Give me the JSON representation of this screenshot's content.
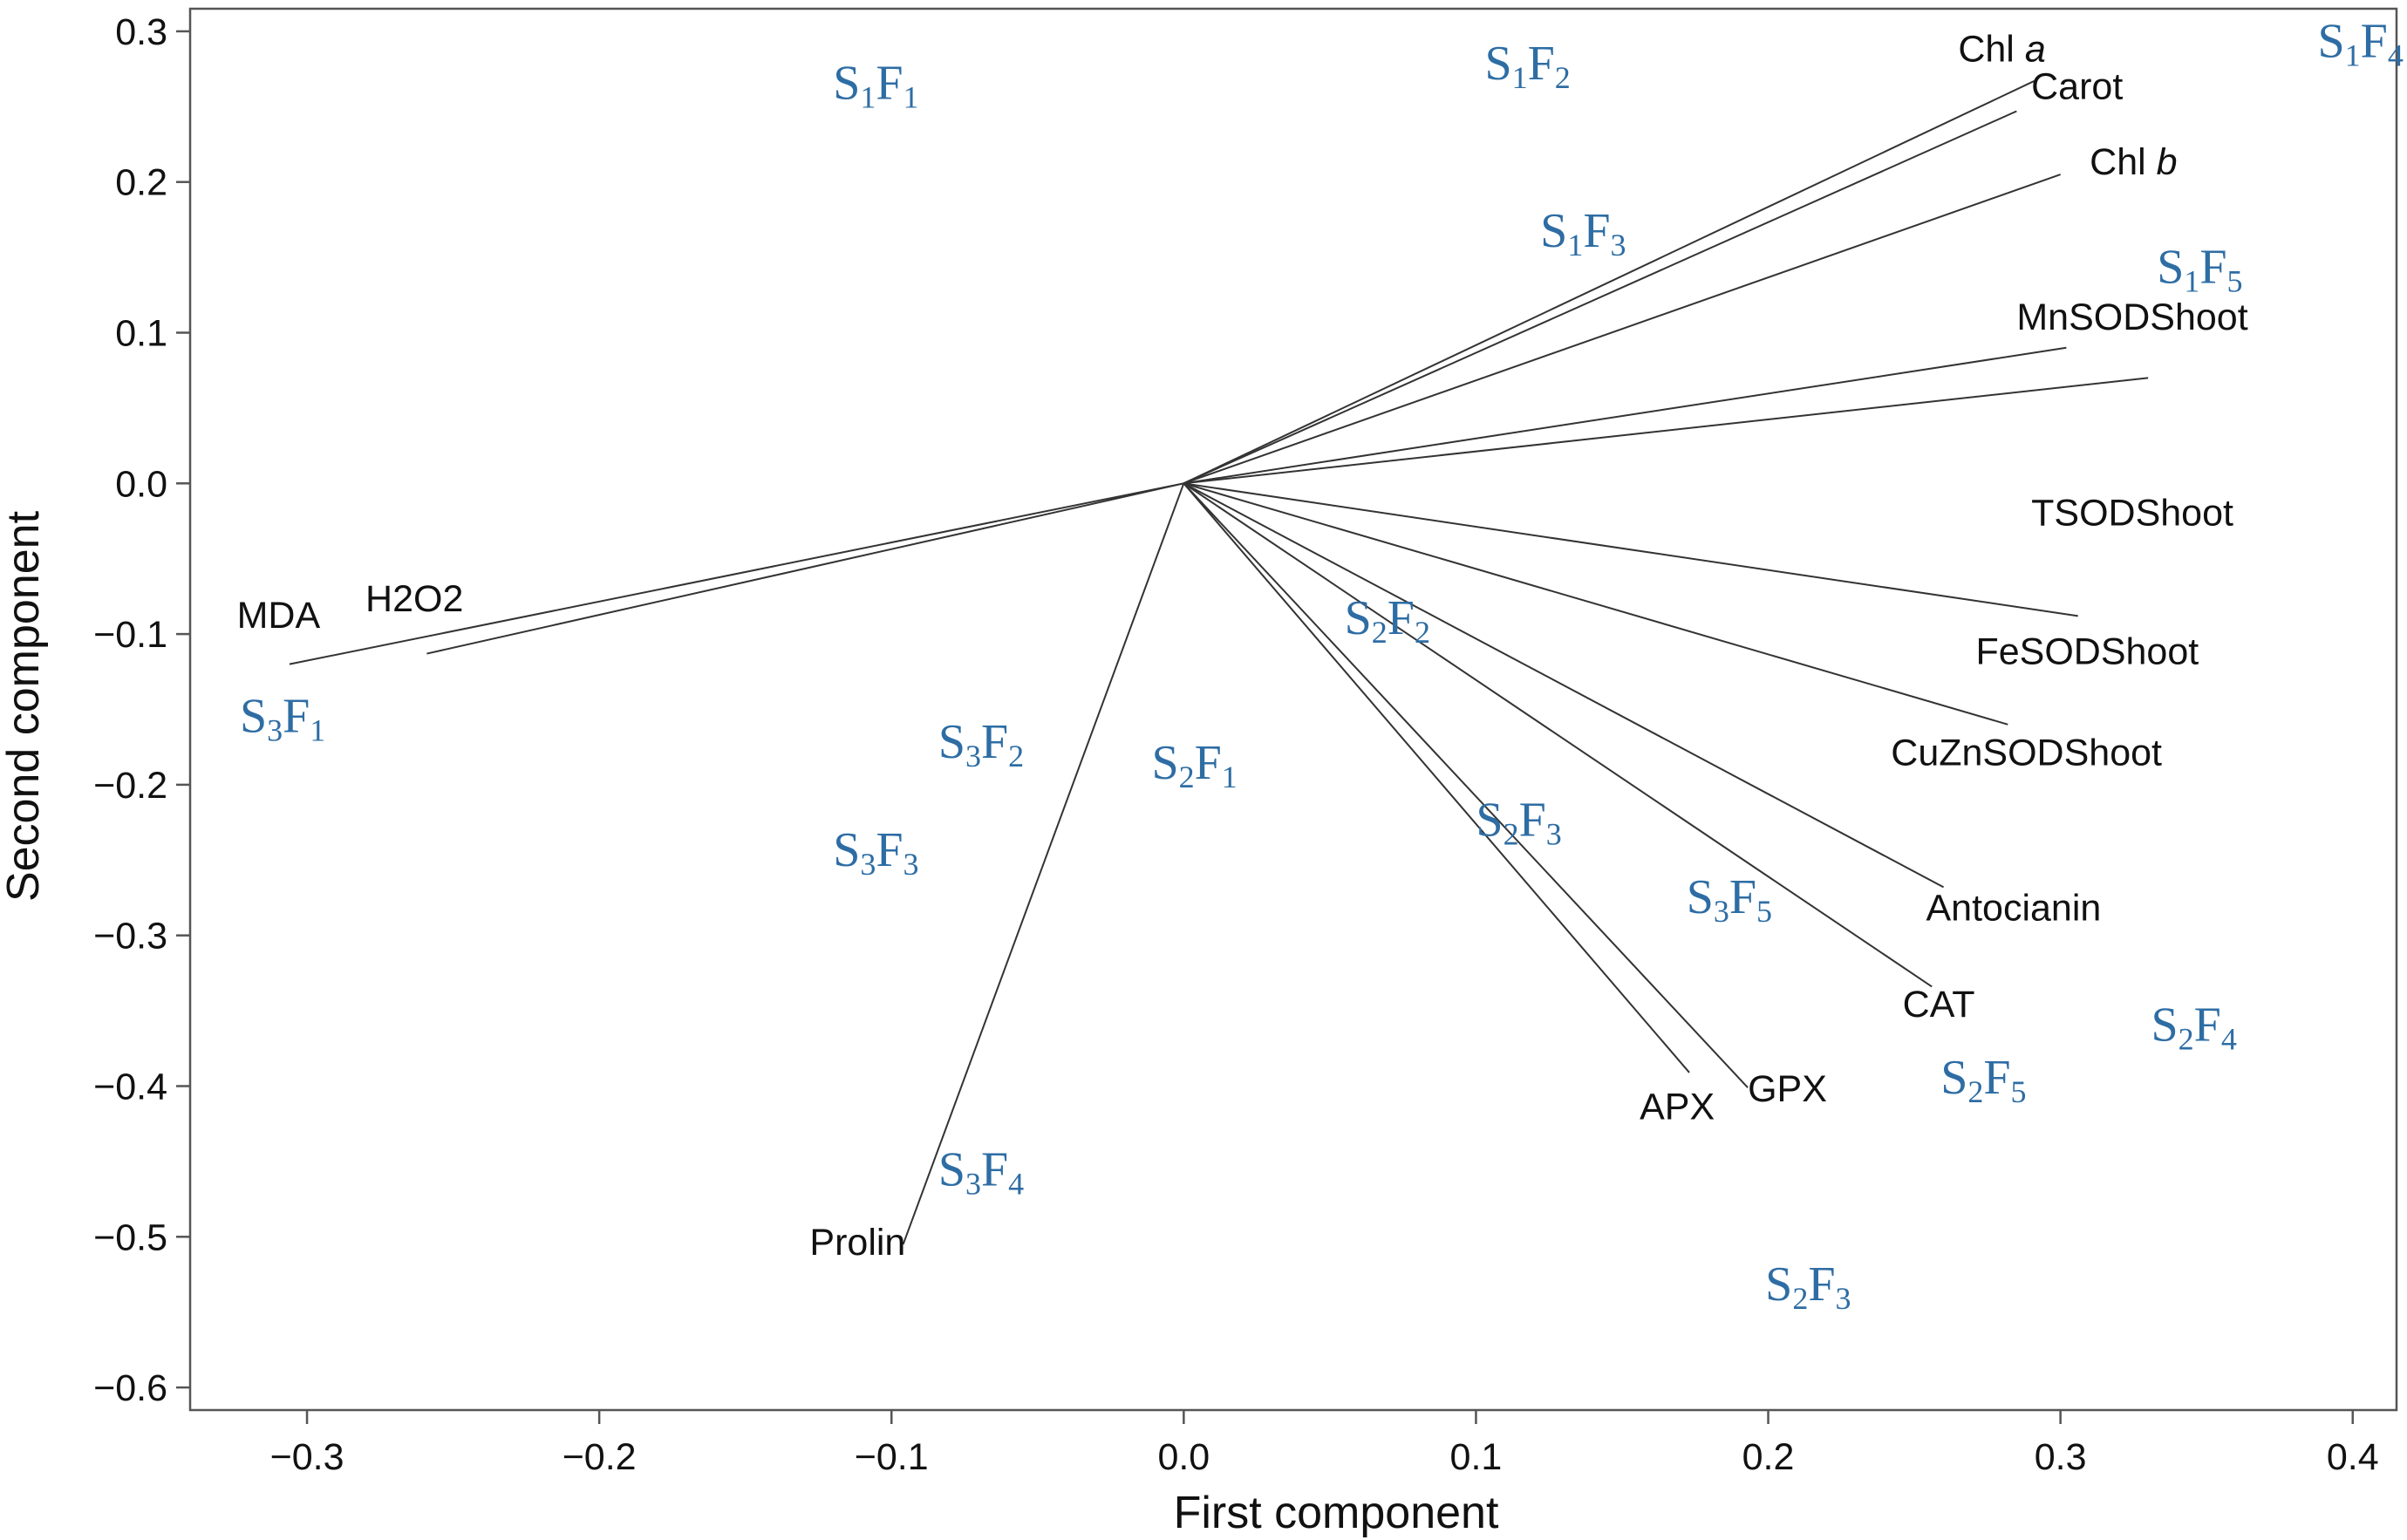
{
  "chart_data": {
    "type": "scatter",
    "title": "",
    "xlabel": "First component",
    "ylabel": "Second component",
    "xlim": [
      -0.34,
      0.415
    ],
    "ylim": [
      -0.615,
      0.315
    ],
    "grid": false,
    "x_ticks": [
      -0.3,
      -0.2,
      -0.1,
      0.0,
      0.1,
      0.2,
      0.3,
      0.4
    ],
    "x_tick_labels": [
      "−0.3",
      "−0.2",
      "−0.1",
      "0.0",
      "0.1",
      "0.2",
      "0.3",
      "0.4"
    ],
    "y_ticks": [
      0.3,
      0.2,
      0.1,
      0.0,
      -0.1,
      -0.2,
      -0.3,
      -0.4,
      -0.5,
      -0.6
    ],
    "y_tick_labels": [
      "0.3",
      "0.2",
      "0.1",
      "0.0",
      "−0.1",
      "−0.2",
      "−0.3",
      "−0.4",
      "−0.5",
      "−0.6"
    ],
    "label_color": "#2e6da4",
    "loadings": [
      {
        "name": "Chl a",
        "text": "Chl ",
        "italic": "a",
        "x": 0.291,
        "y": 0.267,
        "label_x": 0.265,
        "label_y": 0.28
      },
      {
        "name": "Carot",
        "text": "Carot",
        "x": 0.285,
        "y": 0.247,
        "label_x": 0.29,
        "label_y": 0.255
      },
      {
        "name": "Chl b",
        "text": "Chl ",
        "italic": "b",
        "x": 0.3,
        "y": 0.205,
        "label_x": 0.31,
        "label_y": 0.205
      },
      {
        "name": "MnSODShoot",
        "text": "MnSODShoot",
        "x": 0.302,
        "y": 0.09,
        "label_x": 0.285,
        "label_y": 0.102
      },
      {
        "name": "TSODShoot",
        "text": "TSODShoot",
        "x": 0.33,
        "y": 0.07,
        "label_x": 0.29,
        "label_y": -0.028
      },
      {
        "name": "FeSODShoot",
        "text": "FeSODShoot",
        "x": 0.306,
        "y": -0.088,
        "label_x": 0.271,
        "label_y": -0.12
      },
      {
        "name": "CuZnSODShoot",
        "text": "CuZnSODShoot",
        "x": 0.282,
        "y": -0.16,
        "label_x": 0.242,
        "label_y": -0.187
      },
      {
        "name": "Antocianin",
        "text": "Antocianin",
        "x": 0.26,
        "y": -0.268,
        "label_x": 0.254,
        "label_y": -0.29
      },
      {
        "name": "CAT",
        "text": "CAT",
        "x": 0.256,
        "y": -0.334,
        "label_x": 0.246,
        "label_y": -0.354
      },
      {
        "name": "GPX",
        "text": "GPX",
        "x": 0.193,
        "y": -0.401,
        "label_x": 0.193,
        "label_y": -0.41
      },
      {
        "name": "APX",
        "text": "APX",
        "x": 0.173,
        "y": -0.391,
        "label_x": 0.156,
        "label_y": -0.422
      },
      {
        "name": "Prolin",
        "text": "Prolin",
        "x": -0.096,
        "y": -0.505,
        "label_x": -0.128,
        "label_y": -0.512
      },
      {
        "name": "MDA",
        "text": "MDA",
        "x": -0.306,
        "y": -0.12,
        "label_x": -0.324,
        "label_y": -0.096
      },
      {
        "name": "H2O2",
        "text": "H2O2",
        "x": -0.259,
        "y": -0.113,
        "label_x": -0.28,
        "label_y": -0.085
      }
    ],
    "observations": [
      {
        "name": "S1F1",
        "s": "1",
        "f": "1",
        "x": -0.12,
        "y": 0.255
      },
      {
        "name": "S1F2",
        "s": "1",
        "f": "2",
        "x": 0.103,
        "y": 0.268
      },
      {
        "name": "S1F3",
        "s": "1",
        "f": "3",
        "x": 0.122,
        "y": 0.157
      },
      {
        "name": "S1F4",
        "s": "1",
        "f": "4",
        "x": 0.388,
        "y": 0.283
      },
      {
        "name": "S1F5",
        "s": "1",
        "f": "5",
        "x": 0.333,
        "y": 0.133
      },
      {
        "name": "S2F1",
        "s": "2",
        "f": "1",
        "x": -0.011,
        "y": -0.196
      },
      {
        "name": "S2F2",
        "s": "2",
        "f": "2",
        "x": 0.055,
        "y": -0.1
      },
      {
        "name": "S2F3",
        "s": "2",
        "f": "3",
        "x": 0.1,
        "y": -0.234
      },
      {
        "name": "S2F3",
        "s": "2",
        "f": "3",
        "x": 0.199,
        "y": -0.542
      },
      {
        "name": "S2F4",
        "s": "2",
        "f": "4",
        "x": 0.331,
        "y": -0.37
      },
      {
        "name": "S2F5",
        "s": "2",
        "f": "5",
        "x": 0.259,
        "y": -0.405
      },
      {
        "name": "S3F1",
        "s": "3",
        "f": "1",
        "x": -0.323,
        "y": -0.165
      },
      {
        "name": "S3F2",
        "s": "3",
        "f": "2",
        "x": -0.084,
        "y": -0.182
      },
      {
        "name": "S3F3",
        "s": "3",
        "f": "3",
        "x": -0.12,
        "y": -0.254
      },
      {
        "name": "S3F4",
        "s": "3",
        "f": "4",
        "x": -0.084,
        "y": -0.466
      },
      {
        "name": "S3F5",
        "s": "3",
        "f": "5",
        "x": 0.172,
        "y": -0.285
      }
    ]
  }
}
